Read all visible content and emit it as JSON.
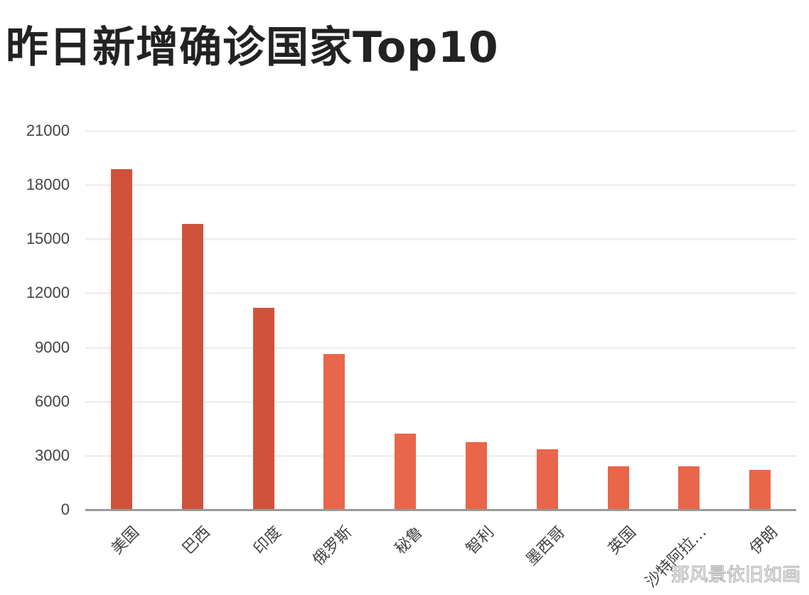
{
  "title": "昨日新增确诊国家Top10",
  "watermark": "那风景依旧如画",
  "colors": {
    "dark_bar": "#cf533b",
    "light_bar": "#e8664a",
    "axis": "#999999",
    "grid": "#f0f0f0"
  },
  "y_ticks": [
    "21000",
    "18000",
    "15000",
    "12000",
    "9000",
    "6000",
    "3000",
    "0"
  ],
  "chart_data": {
    "type": "bar",
    "title": "昨日新增确诊国家Top10",
    "xlabel": "",
    "ylabel": "",
    "ylim": [
      0,
      21000
    ],
    "yticks": [
      0,
      3000,
      6000,
      9000,
      12000,
      15000,
      18000,
      21000
    ],
    "grid": true,
    "legend": "none",
    "categories": [
      "美国",
      "巴西",
      "印度",
      "俄罗斯",
      "秘鲁",
      "智利",
      "墨西哥",
      "英国",
      "沙特阿拉…",
      "伊朗"
    ],
    "values": [
      18870,
      15840,
      11190,
      8630,
      4220,
      3740,
      3350,
      2400,
      2400,
      2210
    ]
  }
}
